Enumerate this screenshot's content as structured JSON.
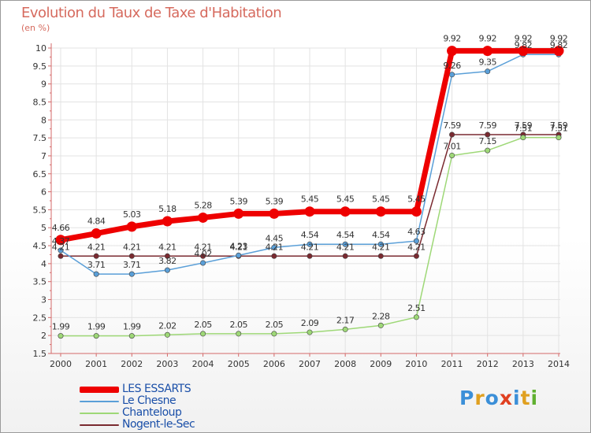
{
  "title": "Evolution du Taux de Taxe d'Habitation",
  "subtitle": "(en %)",
  "colors": {
    "title": "#d66a5e",
    "axis": "#d46a6a",
    "grid": "#e3e3e3"
  },
  "chart_data": {
    "type": "line",
    "title": "Evolution du Taux de Taxe d'Habitation",
    "ylabel": "(en %)",
    "xlabel": "",
    "x": [
      "2000",
      "2001",
      "2002",
      "2003",
      "2004",
      "2005",
      "2006",
      "2007",
      "2008",
      "2009",
      "2010",
      "2011",
      "2012",
      "2013",
      "2014"
    ],
    "ylim": [
      1.5,
      10
    ],
    "yticks": [
      "1.5",
      "2",
      "2.5",
      "3",
      "3.5",
      "4",
      "4.5",
      "5",
      "5.5",
      "6",
      "6.5",
      "7",
      "7.5",
      "8",
      "8.5",
      "9",
      "9.5",
      "10"
    ],
    "grid": true,
    "legend_position": "bottom-left",
    "series": [
      {
        "name": "LES ESSARTS",
        "color": "#ee0000",
        "width": 7,
        "values": [
          4.66,
          4.84,
          5.03,
          5.18,
          5.28,
          5.39,
          5.39,
          5.45,
          5.45,
          5.45,
          5.45,
          9.92,
          9.92,
          9.92,
          9.92
        ],
        "labels": [
          "4.66",
          "4.84",
          "5.03",
          "5.18",
          "5.28",
          "5.39",
          "5.39",
          "5.45",
          "5.45",
          "5.45",
          "5.45",
          "9.92",
          "9.92",
          "9.92",
          "9.92"
        ]
      },
      {
        "name": "Le Chesne",
        "color": "#5a9fd8",
        "width": 1.5,
        "values": [
          4.37,
          3.71,
          3.71,
          3.82,
          4.02,
          4.23,
          4.45,
          4.54,
          4.54,
          4.54,
          4.63,
          9.26,
          9.35,
          9.82,
          9.82
        ],
        "labels": [
          "4.37",
          "3.71",
          "3.71",
          "3.82",
          "4.02",
          "4.23",
          "4.45",
          "4.54",
          "4.54",
          "4.54",
          "4.63",
          "9.26",
          "9.35",
          "9.82",
          "9.82"
        ]
      },
      {
        "name": "Chanteloup",
        "color": "#9ed877",
        "width": 1.5,
        "values": [
          1.99,
          1.99,
          1.99,
          2.02,
          2.05,
          2.05,
          2.05,
          2.09,
          2.17,
          2.28,
          2.51,
          7.01,
          7.15,
          7.51,
          7.51
        ],
        "labels": [
          "1.99",
          "1.99",
          "1.99",
          "2.02",
          "2.05",
          "2.05",
          "2.05",
          "2.09",
          "2.17",
          "2.28",
          "2.51",
          "7.01",
          "7.15",
          "7.51",
          "7.51"
        ]
      },
      {
        "name": "Nogent-le-Sec",
        "color": "#7a2a30",
        "width": 1.5,
        "values": [
          4.21,
          4.21,
          4.21,
          4.21,
          4.21,
          4.21,
          4.21,
          4.21,
          4.21,
          4.21,
          4.21,
          7.59,
          7.59,
          7.59,
          7.59
        ],
        "labels": [
          "4.21",
          "4.21",
          "4.21",
          "4.21",
          "4.21",
          "4.21",
          "4.21",
          "4.21",
          "4.21",
          "4.21",
          "4.21",
          "7.59",
          "7.59",
          "7.59",
          "7.59"
        ]
      }
    ]
  },
  "logo": {
    "letters": [
      "P",
      "r",
      "o",
      "x",
      "i",
      "t",
      "i"
    ],
    "colors": [
      "#3b8fd8",
      "#e0a020",
      "#3b8fd8",
      "#e04020",
      "#3b8fd8",
      "#e0a020",
      "#60b030"
    ]
  }
}
